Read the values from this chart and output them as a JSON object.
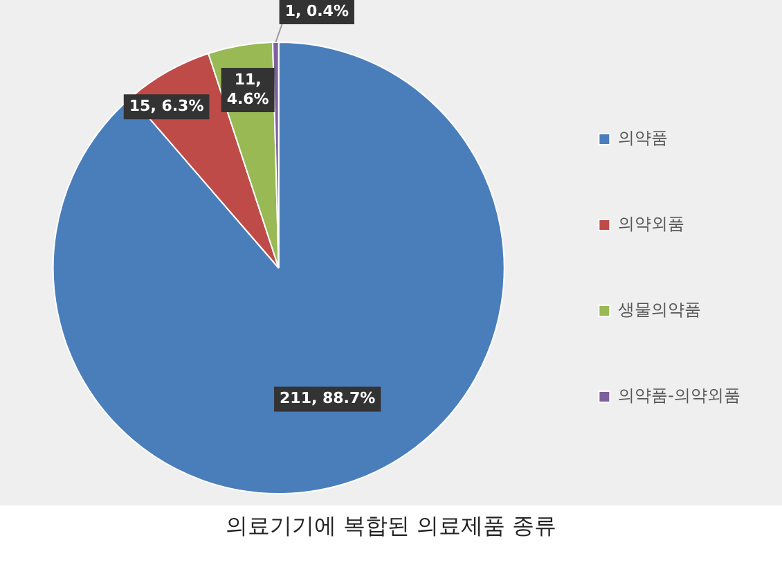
{
  "chart_data": {
    "type": "pie",
    "title": "의료기기에 복합된 의료제품 종류",
    "categories": [
      "의약품",
      "의약외품",
      "생물의약품",
      "의약품-의약외품"
    ],
    "values": [
      211,
      15,
      11,
      1
    ],
    "colors": [
      "#4a7ebb",
      "#be4b48",
      "#98b954",
      "#7d60a0"
    ],
    "value_labels": [
      "211, 88.7%",
      "15, 6.3%",
      "11, 4.6%",
      "1, 0.4%"
    ],
    "legend": "right"
  }
}
